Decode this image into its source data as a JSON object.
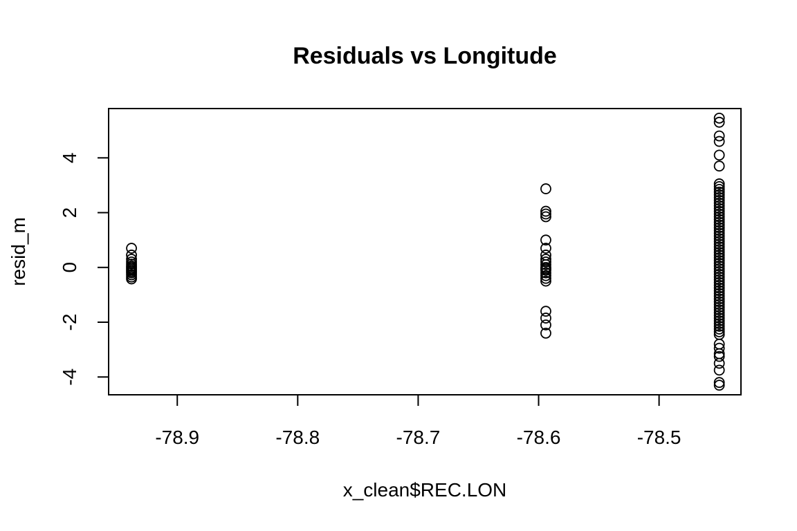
{
  "chart_data": {
    "type": "scatter",
    "title": "Residuals vs Longitude",
    "xlabel": "x_clean$REC.LON",
    "ylabel": "resid_m",
    "xlim": [
      -78.957,
      -78.432
    ],
    "ylim": [
      -4.65,
      5.8
    ],
    "x_ticks": [
      {
        "value": -78.9,
        "label": "-78.9"
      },
      {
        "value": -78.8,
        "label": "-78.8"
      },
      {
        "value": -78.7,
        "label": "-78.7"
      },
      {
        "value": -78.6,
        "label": "-78.6"
      },
      {
        "value": -78.5,
        "label": "-78.5"
      }
    ],
    "y_ticks": [
      {
        "value": -4,
        "label": "-4"
      },
      {
        "value": -2,
        "label": "-2"
      },
      {
        "value": 0,
        "label": "0"
      },
      {
        "value": 2,
        "label": "2"
      },
      {
        "value": 4,
        "label": "4"
      }
    ],
    "grid": false,
    "marker": "open-circle",
    "series": [
      {
        "x": -78.938,
        "y": [
          0.7,
          0.45,
          0.3,
          0.2,
          0.12,
          0.05,
          0.0,
          -0.05,
          -0.1,
          -0.15,
          -0.2,
          -0.27,
          -0.35,
          -0.42
        ]
      },
      {
        "x": -78.594,
        "y": [
          2.87,
          2.05,
          1.95,
          1.85,
          1.0,
          0.7,
          0.45,
          0.3,
          0.2,
          0.1,
          0.0,
          -0.05,
          -0.1,
          -0.2,
          -0.3,
          -0.4,
          -0.5,
          -1.6,
          -1.85,
          -2.1,
          -2.4
        ]
      },
      {
        "x": -78.45,
        "y": [
          5.45,
          5.3,
          4.8,
          4.6,
          4.1,
          3.7,
          3.05,
          2.95,
          2.85,
          2.75,
          2.65,
          2.55,
          2.45,
          2.35,
          2.25,
          2.15,
          2.05,
          1.95,
          1.85,
          1.75,
          1.65,
          1.55,
          1.45,
          1.35,
          1.25,
          1.15,
          1.05,
          0.95,
          0.85,
          0.75,
          0.65,
          0.55,
          0.45,
          0.35,
          0.25,
          0.15,
          0.05,
          -0.05,
          -0.15,
          -0.25,
          -0.35,
          -0.45,
          -0.55,
          -0.65,
          -0.75,
          -0.85,
          -0.95,
          -1.05,
          -1.15,
          -1.25,
          -1.35,
          -1.45,
          -1.55,
          -1.65,
          -1.75,
          -1.85,
          -1.95,
          -2.05,
          -2.15,
          -2.25,
          -2.35,
          -2.45,
          -2.8,
          -2.95,
          -3.15,
          -3.25,
          -3.5,
          -3.75,
          -4.2,
          -4.3
        ]
      }
    ]
  }
}
